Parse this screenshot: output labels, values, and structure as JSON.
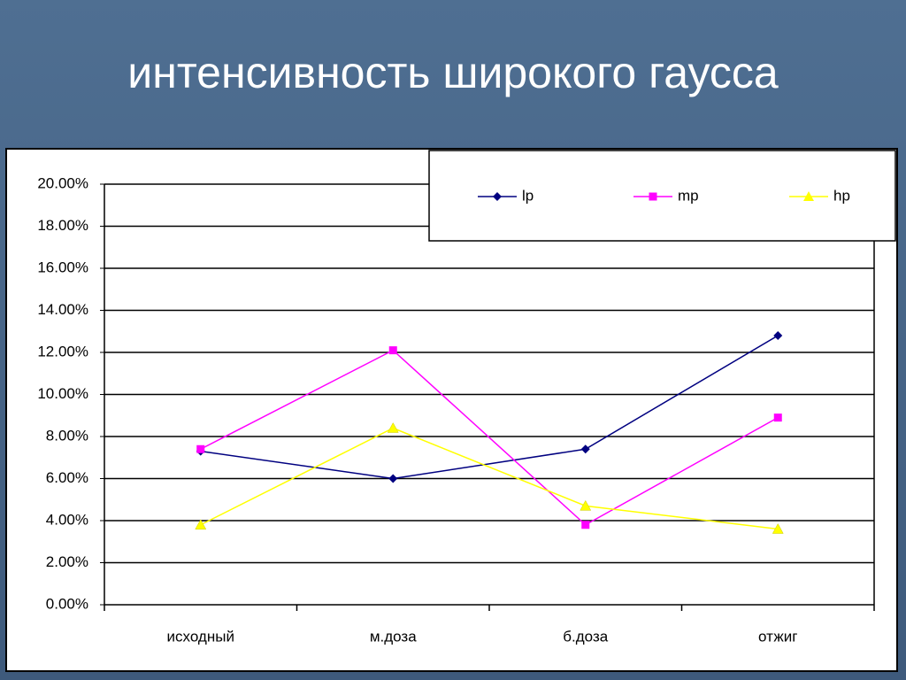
{
  "chart_data": {
    "type": "line",
    "title": "интенсивность широкого гаусса",
    "categories": [
      "исходный",
      "м.доза",
      "б.доза",
      "отжиг"
    ],
    "series": [
      {
        "name": "lp",
        "color": "#000080",
        "marker": "diamond",
        "values": [
          7.3,
          6.0,
          7.4,
          12.8
        ]
      },
      {
        "name": "mp",
        "color": "#ff00ff",
        "marker": "square",
        "values": [
          7.4,
          12.1,
          3.8,
          8.9
        ]
      },
      {
        "name": "hp",
        "color": "#ffff00",
        "marker": "triangle",
        "values": [
          3.8,
          8.4,
          4.7,
          3.6
        ]
      }
    ],
    "ylim": [
      0,
      20
    ],
    "yticks": [
      {
        "value": 0,
        "label": "0.00%"
      },
      {
        "value": 2,
        "label": "2.00%"
      },
      {
        "value": 4,
        "label": "4.00%"
      },
      {
        "value": 6,
        "label": "6.00%"
      },
      {
        "value": 8,
        "label": "8.00%"
      },
      {
        "value": 10,
        "label": "10.00%"
      },
      {
        "value": 12,
        "label": "12.00%"
      },
      {
        "value": 14,
        "label": "14.00%"
      },
      {
        "value": 16,
        "label": "16.00%"
      },
      {
        "value": 18,
        "label": "18.00%"
      },
      {
        "value": 20,
        "label": "20.00%"
      }
    ],
    "grid": true,
    "legend": "top-right"
  }
}
